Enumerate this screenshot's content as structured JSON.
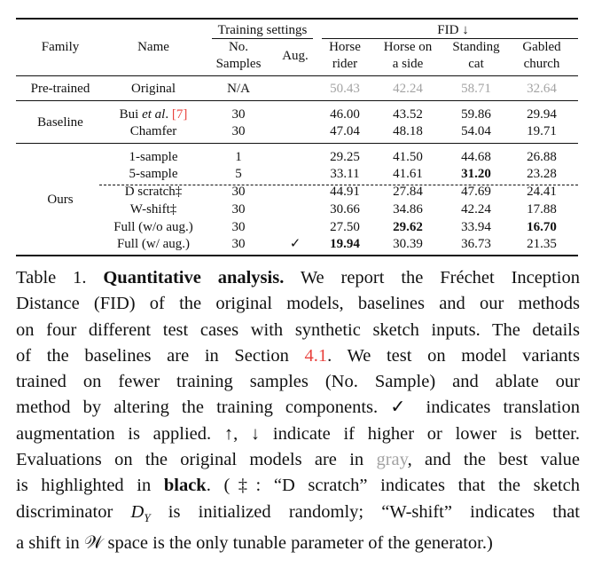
{
  "header": {
    "family": "Family",
    "name": "Name",
    "training_settings": "Training settings",
    "no": "No.",
    "samples": "Samples",
    "aug": "Aug.",
    "fid": "FID ↓",
    "horse_rider_1": "Horse",
    "horse_rider_2": "rider",
    "horse_side_1": "Horse on",
    "horse_side_2": "a side",
    "standing_cat_1": "Standing",
    "standing_cat_2": "cat",
    "gabled_church_1": "Gabled",
    "gabled_church_2": "church"
  },
  "rows": [
    {
      "family": "Pre-trained",
      "name": "Original",
      "samples": "N/A",
      "aug": "",
      "v": [
        "50.43",
        "42.24",
        "58.71",
        "32.64"
      ]
    },
    {
      "family": "Baseline",
      "name_pre": "Bui ",
      "name_em": "et al",
      "name_post": ". ",
      "name_cite": "[7]",
      "samples": "30",
      "aug": "",
      "v": [
        "46.00",
        "43.52",
        "59.86",
        "29.94"
      ]
    },
    {
      "family": "",
      "name": "Chamfer",
      "samples": "30",
      "aug": "",
      "v": [
        "47.04",
        "48.18",
        "54.04",
        "19.71"
      ]
    },
    {
      "family": "",
      "name": "1-sample",
      "samples": "1",
      "aug": "",
      "v": [
        "29.25",
        "41.50",
        "44.68",
        "26.88"
      ]
    },
    {
      "family": "",
      "name": "5-sample",
      "samples": "5",
      "aug": "",
      "v": [
        "33.11",
        "41.61",
        "31.20",
        "23.28"
      ]
    },
    {
      "family": "",
      "name": "D scratch‡",
      "samples": "30",
      "aug": "",
      "v": [
        "44.91",
        "27.84",
        "47.69",
        "24.41"
      ]
    },
    {
      "family": "",
      "name": "W-shift‡",
      "samples": "30",
      "aug": "",
      "v": [
        "30.66",
        "34.86",
        "42.24",
        "17.88"
      ]
    },
    {
      "family": "",
      "name": "Full (w/o aug.)",
      "samples": "30",
      "aug": "",
      "v": [
        "27.50",
        "29.62",
        "33.94",
        "16.70"
      ]
    },
    {
      "family": "",
      "name": "Full (w/ aug.)",
      "samples": "30",
      "aug": "✓",
      "v": [
        "19.94",
        "30.39",
        "36.73",
        "21.35"
      ]
    }
  ],
  "ours_label": "Ours",
  "caption": {
    "l1_a": "Table 1. ",
    "l1_b": "Quantitative analysis.",
    "l1_c": " We report the Fréchet Inception",
    "l2": "Distance (FID) of the original models, baselines and our methods",
    "l3": "on four different test cases with synthetic sketch inputs. The details",
    "l4_a": "of the baselines are in Section ",
    "l4_link": "4.1",
    "l4_b": ". We test on model variants",
    "l5": "trained on fewer training samples (No. Sample) and ablate our",
    "l6": "method by altering the training components. ✓ indicates translation",
    "l7": "augmentation is applied. ↑, ↓ indicate if higher or lower is better.",
    "l8_a": "Evaluations on the original models are in ",
    "l8_gray": "gray",
    "l8_b": ", and the best value",
    "l9_a": "is highlighted in ",
    "l9_black": "black",
    "l9_b": ". (‡: “D scratch” indicates that the sketch",
    "l10_a": "discriminator ",
    "l10_math": "D",
    "l10_sub": "Y",
    "l10_b": " is initialized randomly; “W-shift” indicates that",
    "l11_a": "a shift in ",
    "l11_math": "𝒲",
    "l11_b": " space is the only tunable parameter of the generator.)"
  }
}
